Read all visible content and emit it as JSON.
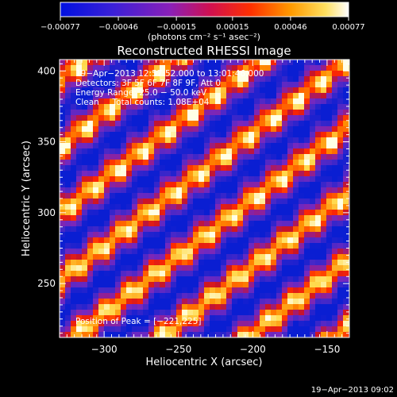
{
  "chart_data": {
    "type": "heatmap",
    "title": "Reconstructed RHESSI Image",
    "xlabel": "Heliocentric X (arcsec)",
    "ylabel": "Heliocentric Y (arcsec)",
    "xlim": [
      -330,
      -135
    ],
    "ylim": [
      212,
      408
    ],
    "x_ticks": [
      -300,
      -250,
      -200,
      -150
    ],
    "x_tick_labels": [
      "−300",
      "−250",
      "−200",
      "−150"
    ],
    "y_ticks": [
      250,
      300,
      350,
      400
    ],
    "y_tick_labels": [
      "250",
      "300",
      "350",
      "400"
    ],
    "colorbar": {
      "min": -0.00077,
      "max": 0.00077,
      "ticks": [
        -0.00077,
        -0.00046,
        -0.00015,
        0.00015,
        0.00046,
        0.00077
      ],
      "tick_labels": [
        "−0.00077",
        "−0.00046",
        "−0.00015",
        "0.00015",
        "0.00046",
        "0.00077"
      ],
      "units_label": "(photons cm⁻² s⁻¹ asec⁻²)"
    },
    "annotations": {
      "time_range": "19−Apr−2013 12:57:52.000 to 13:01:46.000",
      "detectors": "Detectors: 3F 5F 6F 7F 8F 9F, Att 0",
      "energy_range": "Energy Range: 25.0 − 50.0 keV",
      "method": "Clean     Total counts: 1.08E+04",
      "peak": "Position of Peak = [−221,225]"
    },
    "grid": false
  },
  "footer": {
    "timestamp": "19−Apr−2013 09:02"
  },
  "colors": {
    "background": "#000000",
    "foreground": "#ffffff"
  }
}
